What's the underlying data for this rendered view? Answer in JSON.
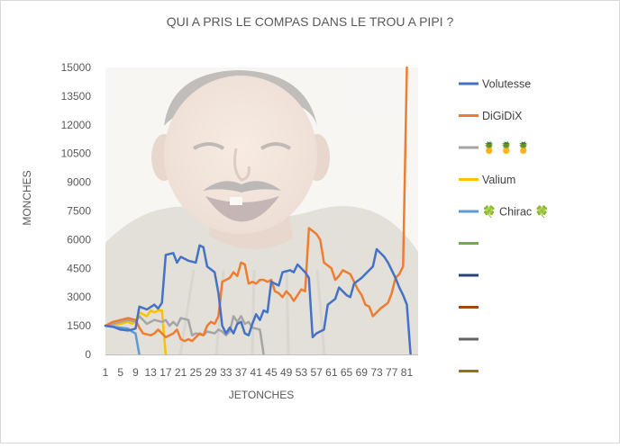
{
  "chart_data": {
    "type": "line",
    "title": "QUI A PRIS LE COMPAS DANS LE TROU A PIPI ?",
    "xlabel": "JETONCHES",
    "ylabel": "MONCHES",
    "ylim": [
      0,
      15000
    ],
    "yticks": [
      0,
      1500,
      3000,
      4500,
      6000,
      7500,
      9000,
      10500,
      12000,
      13500,
      15000
    ],
    "xlim": [
      1,
      84
    ],
    "xticks": [
      1,
      5,
      9,
      13,
      17,
      21,
      25,
      29,
      33,
      37,
      41,
      45,
      49,
      53,
      57,
      61,
      65,
      69,
      73,
      77,
      81
    ],
    "grid": false,
    "legend_position": "right",
    "background_image": "laughing-man-photo",
    "series": [
      {
        "name": "Volutesse",
        "color": "#4472c4",
        "points": [
          [
            1,
            1500
          ],
          [
            3,
            1450
          ],
          [
            5,
            1300
          ],
          [
            7,
            1250
          ],
          [
            9,
            1350
          ],
          [
            10,
            2500
          ],
          [
            12,
            2350
          ],
          [
            14,
            2600
          ],
          [
            15,
            2400
          ],
          [
            16,
            2700
          ],
          [
            17,
            5200
          ],
          [
            19,
            5300
          ],
          [
            20,
            4800
          ],
          [
            21,
            5100
          ],
          [
            23,
            4900
          ],
          [
            25,
            4800
          ],
          [
            26,
            5700
          ],
          [
            27,
            5600
          ],
          [
            28,
            4600
          ],
          [
            30,
            4300
          ],
          [
            31,
            3200
          ],
          [
            32,
            1500
          ],
          [
            33,
            1100
          ],
          [
            34,
            1400
          ],
          [
            35,
            1100
          ],
          [
            36,
            1600
          ],
          [
            37,
            1700
          ],
          [
            38,
            1100
          ],
          [
            39,
            1000
          ],
          [
            40,
            1600
          ],
          [
            41,
            2100
          ],
          [
            42,
            1800
          ],
          [
            43,
            2300
          ],
          [
            44,
            2200
          ],
          [
            45,
            3800
          ],
          [
            47,
            3600
          ],
          [
            48,
            4300
          ],
          [
            50,
            4400
          ],
          [
            51,
            4300
          ],
          [
            52,
            4700
          ],
          [
            54,
            4300
          ],
          [
            55,
            4000
          ],
          [
            56,
            900
          ],
          [
            57,
            1100
          ],
          [
            59,
            1300
          ],
          [
            60,
            2600
          ],
          [
            62,
            2900
          ],
          [
            63,
            3500
          ],
          [
            65,
            3100
          ],
          [
            66,
            3000
          ],
          [
            67,
            3700
          ],
          [
            69,
            4000
          ],
          [
            71,
            4400
          ],
          [
            72,
            4600
          ],
          [
            73,
            5500
          ],
          [
            75,
            5100
          ],
          [
            76,
            4800
          ],
          [
            78,
            4000
          ],
          [
            79,
            3500
          ],
          [
            80,
            3100
          ],
          [
            81,
            2600
          ],
          [
            82,
            0
          ]
        ]
      },
      {
        "name": "DiGiDiX",
        "color": "#ed7d31",
        "points": [
          [
            1,
            1500
          ],
          [
            3,
            1700
          ],
          [
            5,
            1800
          ],
          [
            7,
            1900
          ],
          [
            9,
            1800
          ],
          [
            10,
            1400
          ],
          [
            11,
            1100
          ],
          [
            13,
            1000
          ],
          [
            14,
            1100
          ],
          [
            15,
            1300
          ],
          [
            16,
            1100
          ],
          [
            17,
            900
          ],
          [
            19,
            1100
          ],
          [
            20,
            1300
          ],
          [
            21,
            800
          ],
          [
            22,
            700
          ],
          [
            23,
            800
          ],
          [
            24,
            700
          ],
          [
            25,
            900
          ],
          [
            26,
            1100
          ],
          [
            27,
            1000
          ],
          [
            28,
            1500
          ],
          [
            29,
            1700
          ],
          [
            30,
            1600
          ],
          [
            31,
            2000
          ],
          [
            32,
            3800
          ],
          [
            33,
            3900
          ],
          [
            34,
            4000
          ],
          [
            35,
            4300
          ],
          [
            36,
            4100
          ],
          [
            37,
            4800
          ],
          [
            38,
            4700
          ],
          [
            39,
            3700
          ],
          [
            40,
            3800
          ],
          [
            41,
            3700
          ],
          [
            42,
            3900
          ],
          [
            43,
            3900
          ],
          [
            44,
            3800
          ],
          [
            45,
            3900
          ],
          [
            46,
            3300
          ],
          [
            47,
            3200
          ],
          [
            48,
            3000
          ],
          [
            49,
            3300
          ],
          [
            50,
            3100
          ],
          [
            51,
            2800
          ],
          [
            52,
            3100
          ],
          [
            53,
            3400
          ],
          [
            54,
            3300
          ],
          [
            55,
            6600
          ],
          [
            57,
            6300
          ],
          [
            58,
            6000
          ],
          [
            59,
            4800
          ],
          [
            61,
            4500
          ],
          [
            62,
            3900
          ],
          [
            63,
            4100
          ],
          [
            64,
            4400
          ],
          [
            66,
            4200
          ],
          [
            67,
            3800
          ],
          [
            68,
            3400
          ],
          [
            69,
            3100
          ],
          [
            70,
            2600
          ],
          [
            71,
            2500
          ],
          [
            72,
            2000
          ],
          [
            73,
            2200
          ],
          [
            74,
            2400
          ],
          [
            76,
            2700
          ],
          [
            77,
            3200
          ],
          [
            78,
            4000
          ],
          [
            79,
            4200
          ],
          [
            80,
            4600
          ],
          [
            81,
            15000
          ]
        ]
      },
      {
        "name": "🍍 🍍 🍍",
        "color": "#a5a5a5",
        "points": [
          [
            1,
            1500
          ],
          [
            3,
            1600
          ],
          [
            5,
            1700
          ],
          [
            7,
            1800
          ],
          [
            9,
            1700
          ],
          [
            10,
            2000
          ],
          [
            11,
            1800
          ],
          [
            12,
            1600
          ],
          [
            14,
            1800
          ],
          [
            16,
            1700
          ],
          [
            17,
            1800
          ],
          [
            18,
            1500
          ],
          [
            19,
            1700
          ],
          [
            20,
            1500
          ],
          [
            21,
            1900
          ],
          [
            23,
            1800
          ],
          [
            24,
            1000
          ],
          [
            25,
            1100
          ],
          [
            27,
            1000
          ],
          [
            28,
            1200
          ],
          [
            30,
            1100
          ],
          [
            31,
            1300
          ],
          [
            32,
            1200
          ],
          [
            33,
            1000
          ],
          [
            34,
            1200
          ],
          [
            35,
            2000
          ],
          [
            36,
            1700
          ],
          [
            37,
            2000
          ],
          [
            38,
            1600
          ],
          [
            39,
            1700
          ],
          [
            40,
            1400
          ],
          [
            42,
            1300
          ],
          [
            43,
            0
          ]
        ]
      },
      {
        "name": "Valium",
        "color": "#ffc000",
        "points": [
          [
            1,
            1500
          ],
          [
            3,
            1550
          ],
          [
            5,
            1600
          ],
          [
            7,
            1700
          ],
          [
            8,
            1600
          ],
          [
            9,
            1700
          ],
          [
            10,
            2200
          ],
          [
            12,
            2000
          ],
          [
            13,
            2300
          ],
          [
            14,
            2200
          ],
          [
            15,
            2300
          ],
          [
            16,
            2300
          ],
          [
            17,
            0
          ]
        ]
      },
      {
        "name": "🍀 Chirac 🍀",
        "color": "#5b9bd5",
        "points": [
          [
            1,
            1500
          ],
          [
            3,
            1450
          ],
          [
            5,
            1400
          ],
          [
            7,
            1350
          ],
          [
            8,
            1200
          ],
          [
            9,
            1100
          ],
          [
            10,
            0
          ]
        ]
      },
      {
        "name": "",
        "color": "#70ad47",
        "points": []
      },
      {
        "name": "",
        "color": "#264478",
        "points": []
      },
      {
        "name": "",
        "color": "#9e480e",
        "points": []
      },
      {
        "name": "",
        "color": "#636363",
        "points": []
      },
      {
        "name": "",
        "color": "#997300",
        "points": []
      }
    ]
  }
}
